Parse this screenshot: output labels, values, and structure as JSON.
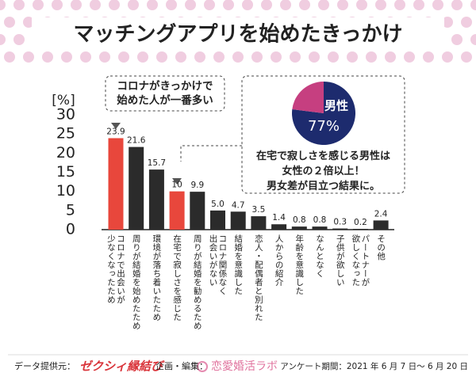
{
  "header": {
    "title": "マッチングアプリを始めたきっかけ"
  },
  "chart_data": [
    {
      "type": "bar",
      "y_label": "[%]",
      "categories": [
        "コロナで出会いが\n少なくなったため",
        "周りが結婚を始めたため",
        "環境が落ち着いたため",
        "在宅で寂しさを感じた",
        "周りが結婚を勧めるため",
        "コロナ関係なく\n出会いがない",
        "結婚を意識した",
        "恋人・配偶者と別れた",
        "人からの紹介",
        "年齢を意識した",
        "なんとなく",
        "子供が欲しい",
        "パートナーが\n欲しくなった",
        "その他"
      ],
      "values": [
        23.9,
        21.6,
        15.7,
        10,
        9.9,
        5,
        4.7,
        3.5,
        1.4,
        0.8,
        0.8,
        0.3,
        0.2,
        2.4
      ],
      "value_labels": [
        "23.9",
        "21.6",
        "15.7",
        "10",
        "9.9",
        "5.0",
        "4.7",
        "3.5",
        "1.4",
        "0.8",
        "0.8",
        "0.3",
        "0.2",
        "2.4"
      ],
      "colors": [
        "#e8473c",
        "#2b2b2b",
        "#2b2b2b",
        "#e8473c",
        "#2b2b2b",
        "#2b2b2b",
        "#2b2b2b",
        "#2b2b2b",
        "#2b2b2b",
        "#2b2b2b",
        "#2b2b2b",
        "#2b2b2b",
        "#2b2b2b",
        "#2b2b2b"
      ],
      "ylim": [
        0,
        30
      ],
      "yticks": [
        0,
        5,
        10,
        15,
        20,
        25,
        30
      ],
      "grid": false,
      "annotation": "コロナがきっかけで\n始めた人が一番多い"
    },
    {
      "type": "pie",
      "categories": [
        "男性",
        null
      ],
      "values": [
        77,
        23
      ],
      "value_labels": [
        "77%",
        null
      ],
      "colors": [
        "#1d2b6e",
        "#c63f80"
      ],
      "note": "在宅で寂しさを感じる男性は\n女性の２倍以上！\n男女差が目立つ結果に。"
    }
  ],
  "footer": {
    "source_label": "データ提供元：",
    "source": "ゼクシィ縁結び",
    "editor_label": "企画・編集：",
    "editor": "恋愛婚活ラボ",
    "period": "アンケート期間：2021 年 6 月 7 日～ 6 月 20 日"
  }
}
